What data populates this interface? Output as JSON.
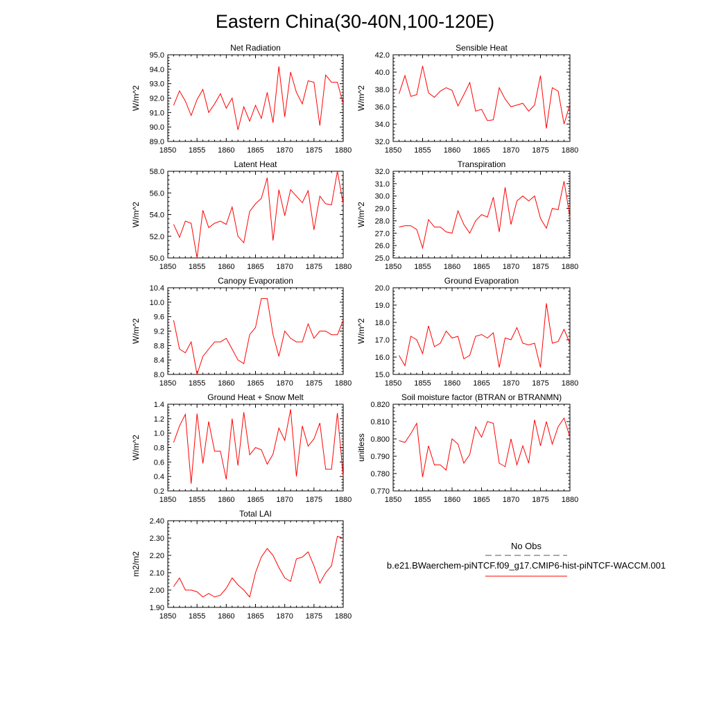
{
  "title": "Eastern China(30-40N,100-120E)",
  "chart_data": [
    {
      "type": "line",
      "title": "Net Radiation",
      "ylabel": "W/m^2",
      "xlim": [
        1850,
        1880
      ],
      "ylim": [
        89.0,
        95.0
      ],
      "xticks": [
        1850,
        1855,
        1860,
        1865,
        1870,
        1875,
        1880
      ],
      "yticks": [
        "89.0",
        "90.0",
        "91.0",
        "92.0",
        "93.0",
        "94.0",
        "95.0"
      ],
      "x": [
        1851,
        1852,
        1853,
        1854,
        1855,
        1856,
        1857,
        1858,
        1859,
        1860,
        1861,
        1862,
        1863,
        1864,
        1865,
        1866,
        1867,
        1868,
        1869,
        1870,
        1871,
        1872,
        1873,
        1874,
        1875,
        1876,
        1877,
        1878,
        1879,
        1880
      ],
      "values": [
        91.5,
        92.5,
        91.8,
        90.8,
        91.9,
        92.6,
        91.0,
        91.6,
        92.3,
        91.3,
        92.0,
        89.8,
        91.4,
        90.4,
        91.5,
        90.6,
        92.4,
        90.3,
        94.2,
        90.7,
        93.8,
        92.4,
        91.6,
        93.2,
        93.1,
        90.1,
        93.6,
        93.1,
        93.1,
        91.6
      ]
    },
    {
      "type": "line",
      "title": "Sensible Heat",
      "ylabel": "W/m^2",
      "xlim": [
        1850,
        1880
      ],
      "ylim": [
        32.0,
        42.0
      ],
      "xticks": [
        1850,
        1855,
        1860,
        1865,
        1870,
        1875,
        1880
      ],
      "yticks": [
        "32.0",
        "34.0",
        "36.0",
        "38.0",
        "40.0",
        "42.0"
      ],
      "x": [
        1851,
        1852,
        1853,
        1854,
        1855,
        1856,
        1857,
        1858,
        1859,
        1860,
        1861,
        1862,
        1863,
        1864,
        1865,
        1866,
        1867,
        1868,
        1869,
        1870,
        1871,
        1872,
        1873,
        1874,
        1875,
        1876,
        1877,
        1878,
        1879,
        1880
      ],
      "values": [
        37.5,
        39.6,
        37.2,
        37.4,
        40.7,
        37.6,
        37.1,
        37.8,
        38.2,
        37.9,
        36.1,
        37.4,
        38.8,
        35.5,
        35.7,
        34.4,
        34.5,
        38.2,
        36.9,
        36.0,
        36.2,
        36.4,
        35.5,
        36.2,
        39.6,
        33.5,
        38.2,
        37.8,
        34.0,
        36.3
      ]
    },
    {
      "type": "line",
      "title": "Latent Heat",
      "ylabel": "W/m^2",
      "xlim": [
        1850,
        1880
      ],
      "ylim": [
        50.0,
        58.0
      ],
      "xticks": [
        1850,
        1855,
        1860,
        1865,
        1870,
        1875,
        1880
      ],
      "yticks": [
        "50.0",
        "52.0",
        "54.0",
        "56.0",
        "58.0"
      ],
      "x": [
        1851,
        1852,
        1853,
        1854,
        1855,
        1856,
        1857,
        1858,
        1859,
        1860,
        1861,
        1862,
        1863,
        1864,
        1865,
        1866,
        1867,
        1868,
        1869,
        1870,
        1871,
        1872,
        1873,
        1874,
        1875,
        1876,
        1877,
        1878,
        1879,
        1880
      ],
      "values": [
        53.1,
        51.9,
        53.4,
        53.2,
        50.0,
        54.4,
        52.8,
        53.2,
        53.4,
        53.1,
        54.7,
        52.0,
        51.4,
        54.3,
        55.0,
        55.5,
        57.4,
        51.6,
        56.3,
        53.9,
        56.3,
        55.7,
        55.1,
        56.2,
        52.6,
        55.7,
        55.0,
        54.9,
        58.0,
        55.0
      ]
    },
    {
      "type": "line",
      "title": "Transpiration",
      "ylabel": "W/m^2",
      "xlim": [
        1850,
        1880
      ],
      "ylim": [
        25.0,
        32.0
      ],
      "xticks": [
        1850,
        1855,
        1860,
        1865,
        1870,
        1875,
        1880
      ],
      "yticks": [
        "25.0",
        "26.0",
        "27.0",
        "28.0",
        "29.0",
        "30.0",
        "31.0",
        "32.0"
      ],
      "x": [
        1851,
        1852,
        1853,
        1854,
        1855,
        1856,
        1857,
        1858,
        1859,
        1860,
        1861,
        1862,
        1863,
        1864,
        1865,
        1866,
        1867,
        1868,
        1869,
        1870,
        1871,
        1872,
        1873,
        1874,
        1875,
        1876,
        1877,
        1878,
        1879,
        1880
      ],
      "values": [
        27.5,
        27.6,
        27.6,
        27.3,
        25.8,
        28.1,
        27.5,
        27.5,
        27.1,
        27.0,
        28.8,
        27.7,
        27.0,
        28.0,
        28.5,
        28.3,
        29.9,
        27.1,
        30.7,
        27.7,
        29.6,
        30.0,
        29.6,
        30.0,
        28.2,
        27.4,
        29.0,
        28.9,
        31.2,
        28.3
      ]
    },
    {
      "type": "line",
      "title": "Canopy Evaporation",
      "ylabel": "W/m^2",
      "xlim": [
        1850,
        1880
      ],
      "ylim": [
        8.0,
        10.4
      ],
      "xticks": [
        1850,
        1855,
        1860,
        1865,
        1870,
        1875,
        1880
      ],
      "yticks": [
        "8.0",
        "8.4",
        "8.8",
        "9.2",
        "9.6",
        "10.0",
        "10.4"
      ],
      "x": [
        1851,
        1852,
        1853,
        1854,
        1855,
        1856,
        1857,
        1858,
        1859,
        1860,
        1861,
        1862,
        1863,
        1864,
        1865,
        1866,
        1867,
        1868,
        1869,
        1870,
        1871,
        1872,
        1873,
        1874,
        1875,
        1876,
        1877,
        1878,
        1879,
        1880
      ],
      "values": [
        9.5,
        8.7,
        8.6,
        8.9,
        8.0,
        8.5,
        8.7,
        8.9,
        8.9,
        9.0,
        8.7,
        8.4,
        8.3,
        9.1,
        9.3,
        10.1,
        10.1,
        9.1,
        8.5,
        9.2,
        9.0,
        8.9,
        8.9,
        9.4,
        9.0,
        9.2,
        9.2,
        9.1,
        9.1,
        9.5
      ]
    },
    {
      "type": "line",
      "title": "Ground Evaporation",
      "ylabel": "W/m^2",
      "xlim": [
        1850,
        1880
      ],
      "ylim": [
        15.0,
        20.0
      ],
      "xticks": [
        1850,
        1855,
        1860,
        1865,
        1870,
        1875,
        1880
      ],
      "yticks": [
        "15.0",
        "16.0",
        "17.0",
        "18.0",
        "19.0",
        "20.0"
      ],
      "x": [
        1851,
        1852,
        1853,
        1854,
        1855,
        1856,
        1857,
        1858,
        1859,
        1860,
        1861,
        1862,
        1863,
        1864,
        1865,
        1866,
        1867,
        1868,
        1869,
        1870,
        1871,
        1872,
        1873,
        1874,
        1875,
        1876,
        1877,
        1878,
        1879,
        1880
      ],
      "values": [
        16.1,
        15.5,
        17.2,
        17.0,
        16.2,
        17.8,
        16.6,
        16.8,
        17.5,
        17.1,
        17.2,
        15.9,
        16.1,
        17.2,
        17.3,
        17.1,
        17.4,
        15.4,
        17.1,
        17.0,
        17.7,
        16.8,
        16.7,
        16.8,
        15.4,
        19.1,
        16.8,
        16.9,
        17.6,
        16.8
      ]
    },
    {
      "type": "line",
      "title": "Ground Heat + Snow Melt",
      "ylabel": "W/m^2",
      "xlim": [
        1850,
        1880
      ],
      "ylim": [
        0.2,
        1.4
      ],
      "xticks": [
        1850,
        1855,
        1860,
        1865,
        1870,
        1875,
        1880
      ],
      "yticks": [
        "0.2",
        "0.4",
        "0.6",
        "0.8",
        "1.0",
        "1.2",
        "1.4"
      ],
      "x": [
        1851,
        1852,
        1853,
        1854,
        1855,
        1856,
        1857,
        1858,
        1859,
        1860,
        1861,
        1862,
        1863,
        1864,
        1865,
        1866,
        1867,
        1868,
        1869,
        1870,
        1871,
        1872,
        1873,
        1874,
        1875,
        1876,
        1877,
        1878,
        1879,
        1880
      ],
      "values": [
        0.87,
        1.1,
        1.26,
        0.3,
        1.27,
        0.58,
        1.16,
        0.75,
        0.75,
        0.36,
        1.2,
        0.55,
        1.29,
        0.7,
        0.8,
        0.77,
        0.57,
        0.71,
        1.07,
        0.9,
        1.33,
        0.4,
        1.1,
        0.82,
        0.92,
        1.14,
        0.5,
        0.5,
        1.28,
        0.4
      ]
    },
    {
      "type": "line",
      "title": "Soil moisture factor (BTRAN or BTRANMN)",
      "ylabel": "unitless",
      "xlim": [
        1850,
        1880
      ],
      "ylim": [
        0.77,
        0.82
      ],
      "xticks": [
        1850,
        1855,
        1860,
        1865,
        1870,
        1875,
        1880
      ],
      "yticks": [
        "0.770",
        "0.780",
        "0.790",
        "0.800",
        "0.810",
        "0.820"
      ],
      "x": [
        1851,
        1852,
        1853,
        1854,
        1855,
        1856,
        1857,
        1858,
        1859,
        1860,
        1861,
        1862,
        1863,
        1864,
        1865,
        1866,
        1867,
        1868,
        1869,
        1870,
        1871,
        1872,
        1873,
        1874,
        1875,
        1876,
        1877,
        1878,
        1879,
        1880
      ],
      "values": [
        0.799,
        0.798,
        0.803,
        0.809,
        0.778,
        0.796,
        0.785,
        0.785,
        0.782,
        0.8,
        0.797,
        0.786,
        0.791,
        0.807,
        0.801,
        0.81,
        0.809,
        0.786,
        0.784,
        0.8,
        0.785,
        0.796,
        0.786,
        0.811,
        0.796,
        0.81,
        0.797,
        0.807,
        0.812,
        0.801
      ]
    },
    {
      "type": "line",
      "title": "Total LAI",
      "ylabel": "m2/m2",
      "xlim": [
        1850,
        1880
      ],
      "ylim": [
        1.9,
        2.4
      ],
      "xticks": [
        1850,
        1855,
        1860,
        1865,
        1870,
        1875,
        1880
      ],
      "yticks": [
        "1.90",
        "2.00",
        "2.10",
        "2.20",
        "2.30",
        "2.40"
      ],
      "x": [
        1851,
        1852,
        1853,
        1854,
        1855,
        1856,
        1857,
        1858,
        1859,
        1860,
        1861,
        1862,
        1863,
        1864,
        1865,
        1866,
        1867,
        1868,
        1869,
        1870,
        1871,
        1872,
        1873,
        1874,
        1875,
        1876,
        1877,
        1878,
        1879,
        1880
      ],
      "values": [
        2.02,
        2.07,
        2.0,
        2.0,
        1.99,
        1.96,
        1.98,
        1.96,
        1.97,
        2.01,
        2.07,
        2.03,
        2.0,
        1.96,
        2.1,
        2.19,
        2.24,
        2.2,
        2.13,
        2.07,
        2.05,
        2.18,
        2.19,
        2.22,
        2.14,
        2.04,
        2.1,
        2.14,
        2.31,
        2.3
      ]
    }
  ],
  "legend": {
    "entries": [
      {
        "label": "No Obs",
        "color": "#555555",
        "style": "dashed"
      },
      {
        "label": "b.e21.BWaerchem-piNTCF.f09_g17.CMIP6-hist-piNTCF-WACCM.001",
        "color": "#ff0000",
        "style": "solid"
      }
    ]
  }
}
